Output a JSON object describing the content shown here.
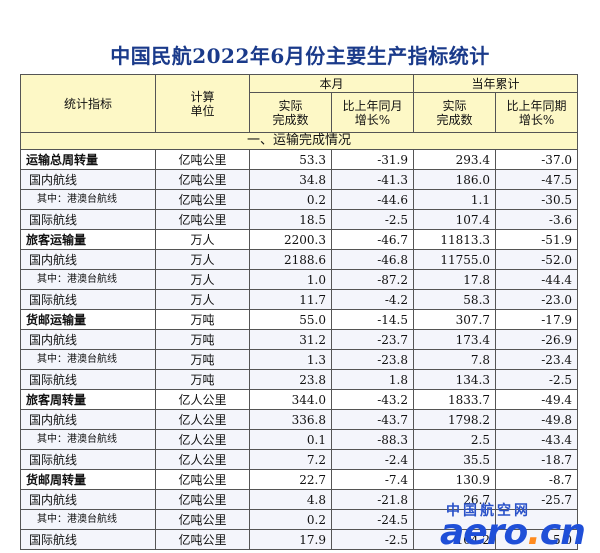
{
  "title": "中国民航2022年6月份主要生产指标统计",
  "headers": {
    "indicator": "统计指标",
    "unit_line1": "计算",
    "unit_line2": "单位",
    "month": "本月",
    "ytd": "当年累计",
    "actual_line1": "实际",
    "actual_line2": "完成数",
    "yoy_month_line1": "比上年同月",
    "yoy_month_line2": "增长%",
    "actual_ytd_line1": "实际",
    "actual_ytd_line2": "完成数",
    "yoy_period_line1": "比上年同期",
    "yoy_period_line2": "增长%"
  },
  "section": "一、运输完成情况",
  "rows": [
    {
      "name": "运输总周转量",
      "unit": "亿吨公里",
      "m": "53.3",
      "mg": "-31.9",
      "y": "293.4",
      "yg": "-37.0"
    },
    {
      "name": "国内航线",
      "unit": "亿吨公里",
      "m": "34.8",
      "mg": "-41.3",
      "y": "186.0",
      "yg": "-47.5"
    },
    {
      "name": "其中：港澳台航线",
      "unit": "亿吨公里",
      "m": "0.2",
      "mg": "-44.6",
      "y": "1.1",
      "yg": "-30.5"
    },
    {
      "name": "国际航线",
      "unit": "亿吨公里",
      "m": "18.5",
      "mg": "-2.5",
      "y": "107.4",
      "yg": "-3.6"
    },
    {
      "name": "旅客运输量",
      "unit": "万人",
      "m": "2200.3",
      "mg": "-46.7",
      "y": "11813.3",
      "yg": "-51.9"
    },
    {
      "name": "国内航线",
      "unit": "万人",
      "m": "2188.6",
      "mg": "-46.8",
      "y": "11755.0",
      "yg": "-52.0"
    },
    {
      "name": "其中：港澳台航线",
      "unit": "万人",
      "m": "1.0",
      "mg": "-87.2",
      "y": "17.8",
      "yg": "-44.4"
    },
    {
      "name": "国际航线",
      "unit": "万人",
      "m": "11.7",
      "mg": "-4.2",
      "y": "58.3",
      "yg": "-23.0"
    },
    {
      "name": "货邮运输量",
      "unit": "万吨",
      "m": "55.0",
      "mg": "-14.5",
      "y": "307.7",
      "yg": "-17.9"
    },
    {
      "name": "国内航线",
      "unit": "万吨",
      "m": "31.2",
      "mg": "-23.7",
      "y": "173.4",
      "yg": "-26.9"
    },
    {
      "name": "其中：港澳台航线",
      "unit": "万吨",
      "m": "1.3",
      "mg": "-23.8",
      "y": "7.8",
      "yg": "-23.4"
    },
    {
      "name": "国际航线",
      "unit": "万吨",
      "m": "23.8",
      "mg": "1.8",
      "y": "134.3",
      "yg": "-2.5"
    },
    {
      "name": "旅客周转量",
      "unit": "亿人公里",
      "m": "344.0",
      "mg": "-43.2",
      "y": "1833.7",
      "yg": "-49.4"
    },
    {
      "name": "国内航线",
      "unit": "亿人公里",
      "m": "336.8",
      "mg": "-43.7",
      "y": "1798.2",
      "yg": "-49.8"
    },
    {
      "name": "其中：港澳台航线",
      "unit": "亿人公里",
      "m": "0.1",
      "mg": "-88.3",
      "y": "2.5",
      "yg": "-43.4"
    },
    {
      "name": "国际航线",
      "unit": "亿人公里",
      "m": "7.2",
      "mg": "-2.4",
      "y": "35.5",
      "yg": "-18.7"
    },
    {
      "name": "货邮周转量",
      "unit": "亿吨公里",
      "m": "22.7",
      "mg": "-7.4",
      "y": "130.9",
      "yg": "-8.7"
    },
    {
      "name": "国内航线",
      "unit": "亿吨公里",
      "m": "4.8",
      "mg": "-21.8",
      "y": "26.7",
      "yg": "-25.7"
    },
    {
      "name": "其中：港澳台航线",
      "unit": "亿吨公里",
      "m": "0.2",
      "mg": "-24.5",
      "y": "",
      "yg": ""
    },
    {
      "name": "国际航线",
      "unit": "亿吨公里",
      "m": "17.9",
      "mg": "-2.5",
      "y": "104.2",
      "yg": "-5.0"
    }
  ],
  "watermark": {
    "cn": "中国航空网",
    "en_main": "aero",
    "en_dot": ".",
    "en_tld": "cn"
  },
  "colors": {
    "title": "#1a3a8a",
    "header_bg": "#fdf8c6",
    "watermark": "#1f4fd8",
    "watermark_dot": "#ff8a1f"
  }
}
